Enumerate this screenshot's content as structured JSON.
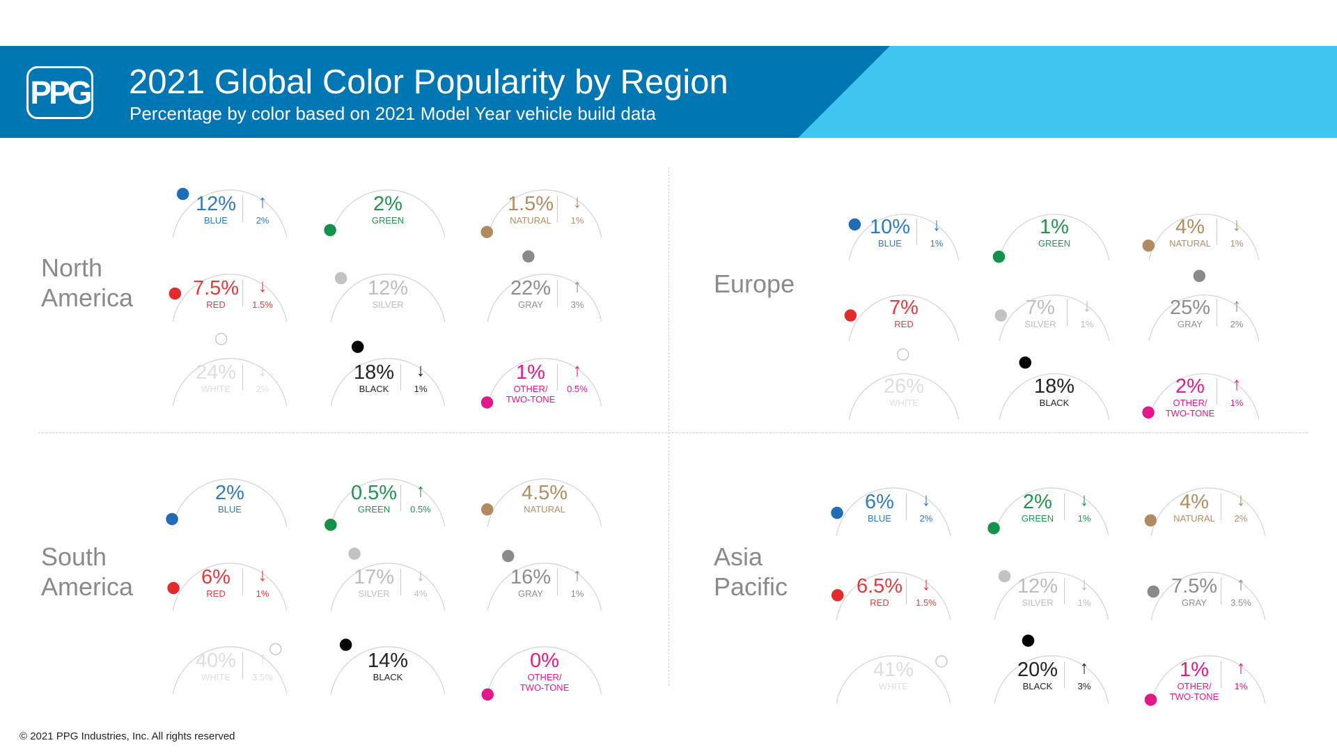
{
  "header": {
    "logo_text": "PPG",
    "title": "2021 Global Color Popularity by Region",
    "subtitle": "Percentage by color based on 2021 Model Year vehicle build data",
    "colors": {
      "dark_blue": "#0077b2",
      "light_blue": "#3ec6f1"
    }
  },
  "footer": {
    "copyright": "© 2021 PPG Industries, Inc. All rights reserved"
  },
  "color_styles": {
    "BLUE": {
      "text": "#2e7ac0",
      "dot": "#1f6db8",
      "dot_border": "#1f6db8"
    },
    "GREEN": {
      "text": "#23934d",
      "dot": "#14914a",
      "dot_border": "#14914a"
    },
    "NATURAL": {
      "text": "#b38c62",
      "dot": "#b18a60",
      "dot_border": "#b18a60"
    },
    "RED": {
      "text": "#e23b3b",
      "dot": "#e32b2b",
      "dot_border": "#e32b2b"
    },
    "SILVER": {
      "text": "#bdbdbd",
      "dot": "#c2c2c2",
      "dot_border": "#c2c2c2"
    },
    "GRAY": {
      "text": "#8d8d8d",
      "dot": "#8a8a8a",
      "dot_border": "#8a8a8a"
    },
    "WHITE": {
      "text": "#dedede",
      "dot": "#ffffff",
      "dot_border": "#c8c8c8"
    },
    "BLACK": {
      "text": "#222222",
      "dot": "#000000",
      "dot_border": "#000000"
    },
    "OTHER": {
      "text": "#e2198a",
      "dot": "#e2198a",
      "dot_border": "#e2198a"
    }
  },
  "chart_data": [
    {
      "type": "gauge",
      "region": "North America",
      "series": [
        {
          "color": "BLUE",
          "label": "BLUE",
          "value": "12%",
          "share": 12,
          "change_dir": "up",
          "change": "2%"
        },
        {
          "color": "GREEN",
          "label": "GREEN",
          "value": "2%",
          "share": 2,
          "change_dir": "",
          "change": ""
        },
        {
          "color": "NATURAL",
          "label": "NATURAL",
          "value": "1.5%",
          "share": 1.5,
          "change_dir": "down",
          "change": "1%"
        },
        {
          "color": "RED",
          "label": "RED",
          "value": "7.5%",
          "share": 7.5,
          "change_dir": "down",
          "change": "1.5%"
        },
        {
          "color": "SILVER",
          "label": "SILVER",
          "value": "12%",
          "share": 12,
          "change_dir": "",
          "change": ""
        },
        {
          "color": "GRAY",
          "label": "GRAY",
          "value": "22%",
          "share": 22,
          "change_dir": "up",
          "change": "3%"
        },
        {
          "color": "WHITE",
          "label": "WHITE",
          "value": "24%",
          "share": 24,
          "change_dir": "down",
          "change": "2%"
        },
        {
          "color": "BLACK",
          "label": "BLACK",
          "value": "18%",
          "share": 18,
          "change_dir": "down",
          "change": "1%"
        },
        {
          "color": "OTHER",
          "label": "OTHER/\nTWO-TONE",
          "value": "1%",
          "share": 1,
          "change_dir": "up",
          "change": "0.5%"
        }
      ]
    },
    {
      "type": "gauge",
      "region": "Europe",
      "series": [
        {
          "color": "BLUE",
          "label": "BLUE",
          "value": "10%",
          "share": 10,
          "change_dir": "down",
          "change": "1%"
        },
        {
          "color": "GREEN",
          "label": "GREEN",
          "value": "1%",
          "share": 1,
          "change_dir": "",
          "change": ""
        },
        {
          "color": "NATURAL",
          "label": "NATURAL",
          "value": "4%",
          "share": 4,
          "change_dir": "down",
          "change": "1%"
        },
        {
          "color": "RED",
          "label": "RED",
          "value": "7%",
          "share": 7,
          "change_dir": "",
          "change": ""
        },
        {
          "color": "SILVER",
          "label": "SILVER",
          "value": "7%",
          "share": 7,
          "change_dir": "down",
          "change": "1%"
        },
        {
          "color": "GRAY",
          "label": "GRAY",
          "value": "25%",
          "share": 25,
          "change_dir": "up",
          "change": "2%"
        },
        {
          "color": "WHITE",
          "label": "WHITE",
          "value": "26%",
          "share": 26,
          "change_dir": "",
          "change": ""
        },
        {
          "color": "BLACK",
          "label": "BLACK",
          "value": "18%",
          "share": 18,
          "change_dir": "",
          "change": ""
        },
        {
          "color": "OTHER",
          "label": "OTHER/\nTWO-TONE",
          "value": "2%",
          "share": 2,
          "change_dir": "up",
          "change": "1%"
        }
      ]
    },
    {
      "type": "gauge",
      "region": "South America",
      "series": [
        {
          "color": "BLUE",
          "label": "BLUE",
          "value": "2%",
          "share": 2,
          "change_dir": "",
          "change": ""
        },
        {
          "color": "GREEN",
          "label": "GREEN",
          "value": "0.5%",
          "share": 0.5,
          "change_dir": "up",
          "change": "0.5%"
        },
        {
          "color": "NATURAL",
          "label": "NATURAL",
          "value": "4.5%",
          "share": 4.5,
          "change_dir": "",
          "change": ""
        },
        {
          "color": "RED",
          "label": "RED",
          "value": "6%",
          "share": 6,
          "change_dir": "down",
          "change": "1%"
        },
        {
          "color": "SILVER",
          "label": "SILVER",
          "value": "17%",
          "share": 17,
          "change_dir": "down",
          "change": "4%"
        },
        {
          "color": "GRAY",
          "label": "GRAY",
          "value": "16%",
          "share": 16,
          "change_dir": "up",
          "change": "1%"
        },
        {
          "color": "WHITE",
          "label": "WHITE",
          "value": "40%",
          "share": 40,
          "change_dir": "up",
          "change": "3.5%"
        },
        {
          "color": "BLACK",
          "label": "BLACK",
          "value": "14%",
          "share": 14,
          "change_dir": "",
          "change": ""
        },
        {
          "color": "OTHER",
          "label": "OTHER/\nTWO-TONE",
          "value": "0%",
          "share": 0,
          "change_dir": "",
          "change": ""
        }
      ]
    },
    {
      "type": "gauge",
      "region": "Asia Pacific",
      "series": [
        {
          "color": "BLUE",
          "label": "BLUE",
          "value": "6%",
          "share": 6,
          "change_dir": "down",
          "change": "2%"
        },
        {
          "color": "GREEN",
          "label": "GREEN",
          "value": "2%",
          "share": 2,
          "change_dir": "down",
          "change": "1%"
        },
        {
          "color": "NATURAL",
          "label": "NATURAL",
          "value": "4%",
          "share": 4,
          "change_dir": "down",
          "change": "2%"
        },
        {
          "color": "RED",
          "label": "RED",
          "value": "6.5%",
          "share": 6.5,
          "change_dir": "down",
          "change": "1.5%"
        },
        {
          "color": "SILVER",
          "label": "SILVER",
          "value": "12%",
          "share": 12,
          "change_dir": "down",
          "change": "1%"
        },
        {
          "color": "GRAY",
          "label": "GRAY",
          "value": "7.5%",
          "share": 7.5,
          "change_dir": "up",
          "change": "3.5%"
        },
        {
          "color": "WHITE",
          "label": "WHITE",
          "value": "41%",
          "share": 41,
          "change_dir": "",
          "change": ""
        },
        {
          "color": "BLACK",
          "label": "BLACK",
          "value": "20%",
          "share": 20,
          "change_dir": "up",
          "change": "3%"
        },
        {
          "color": "OTHER",
          "label": "OTHER/\nTWO-TONE",
          "value": "1%",
          "share": 1,
          "change_dir": "up",
          "change": "1%"
        }
      ]
    }
  ]
}
